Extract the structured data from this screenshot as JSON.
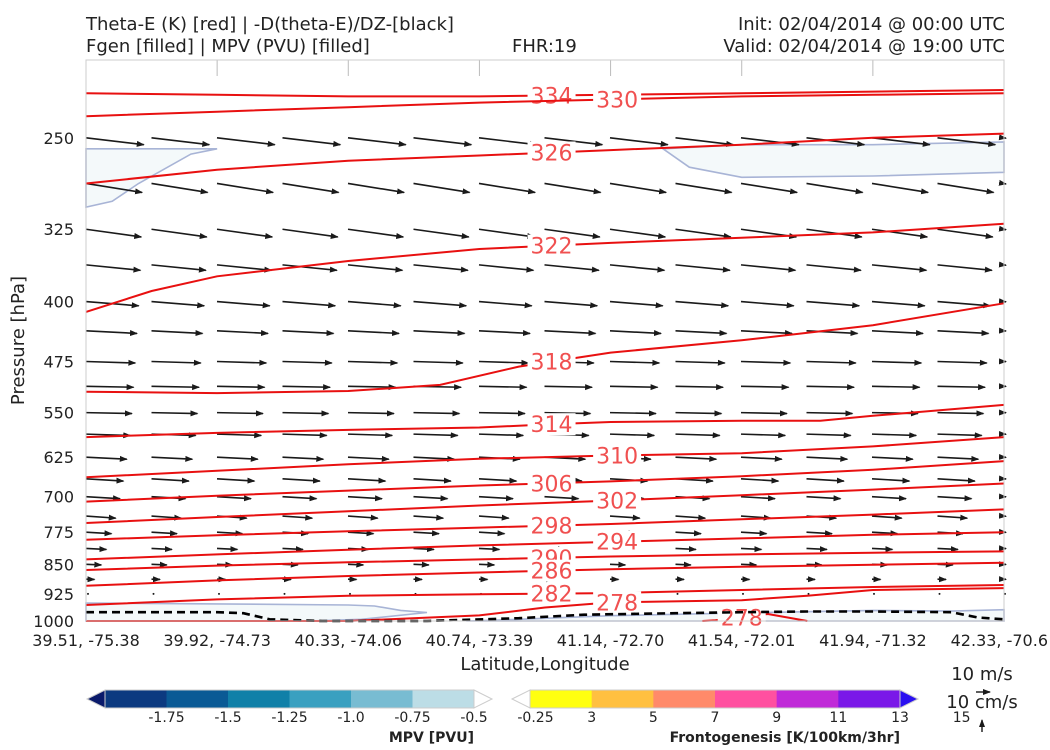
{
  "header": {
    "title_line1": "Theta-E (K) [red] | -D(theta-E)/DZ-[black]",
    "title_line2": "Fgen [filled] | MPV (PVU) [filled]",
    "fhr": "FHR:19",
    "init": "Init: 02/04/2014 @ 00:00 UTC",
    "valid": "Valid: 02/04/2014 @ 19:00 UTC"
  },
  "colors": {
    "theta_e": "#e81010",
    "mpv_fill": "#f4f9fa",
    "mpv_edge": "#a8b4d6",
    "zero_contour": "#000000",
    "vector": "#1a1a1a"
  },
  "chart_data": {
    "type": "cross-section",
    "xlabel": "Latitude,Longitude",
    "ylabel": "Pressure [hPa]",
    "x_ticks": [
      "39.51, -75.38",
      "39.92, -74.73",
      "40.33, -74.06",
      "40.74, -73.39",
      "41.14, -72.70",
      "41.54, -72.01",
      "41.94, -71.32",
      "42.33, -70.6"
    ],
    "xlim": [
      0,
      7
    ],
    "ylim": [
      1000,
      200
    ],
    "y_scale": "log",
    "y_ticks": [
      250,
      325,
      400,
      475,
      550,
      625,
      700,
      775,
      850,
      925,
      1000
    ],
    "theta_e_contours": [
      {
        "level": 334,
        "label": "334",
        "label_x": 3.55,
        "points": [
          [
            0,
            220
          ],
          [
            1,
            221
          ],
          [
            2,
            222
          ],
          [
            3,
            222
          ],
          [
            4,
            221
          ],
          [
            5,
            220
          ],
          [
            6,
            219
          ],
          [
            7,
            218
          ]
        ]
      },
      {
        "level": 330,
        "label": "330",
        "label_x": 4.05,
        "points": [
          [
            0,
            235
          ],
          [
            1,
            232
          ],
          [
            2,
            229
          ],
          [
            3,
            226
          ],
          [
            4,
            224
          ],
          [
            5,
            222
          ],
          [
            6,
            221
          ],
          [
            7,
            220
          ]
        ]
      },
      {
        "level": 326,
        "label": "326",
        "label_x": 3.55,
        "points": [
          [
            0,
            285
          ],
          [
            1,
            274
          ],
          [
            2,
            267
          ],
          [
            3,
            263
          ],
          [
            4,
            259
          ],
          [
            5,
            255
          ],
          [
            6,
            250
          ],
          [
            7,
            247
          ]
        ]
      },
      {
        "level": 322,
        "label": "322",
        "label_x": 3.55,
        "points": [
          [
            0,
            412
          ],
          [
            0.5,
            388
          ],
          [
            1,
            372
          ],
          [
            2,
            356
          ],
          [
            3,
            344
          ],
          [
            4,
            338
          ],
          [
            5,
            333
          ],
          [
            6,
            328
          ],
          [
            7,
            320
          ]
        ]
      },
      {
        "level": 318,
        "label": "318",
        "label_x": 3.55,
        "points": [
          [
            0,
            518
          ],
          [
            1,
            520
          ],
          [
            2,
            517
          ],
          [
            2.7,
            508
          ],
          [
            3.3,
            482
          ],
          [
            4,
            463
          ],
          [
            5,
            447
          ],
          [
            6,
            428
          ],
          [
            7,
            402
          ]
        ]
      },
      {
        "level": 314,
        "label": "314",
        "label_x": 3.55,
        "points": [
          [
            0,
            590
          ],
          [
            1,
            583
          ],
          [
            2,
            578
          ],
          [
            3,
            574
          ],
          [
            3.5,
            569
          ],
          [
            4,
            565
          ],
          [
            5,
            563
          ],
          [
            5.6,
            563
          ],
          [
            6,
            555
          ],
          [
            7,
            538
          ]
        ]
      },
      {
        "level": 310,
        "label": "310",
        "label_x": 4.05,
        "points": [
          [
            0,
            662
          ],
          [
            1,
            650
          ],
          [
            2,
            638
          ],
          [
            3,
            628
          ],
          [
            4,
            622
          ],
          [
            5,
            618
          ],
          [
            6,
            606
          ],
          [
            7,
            590
          ]
        ]
      },
      {
        "level": 306,
        "label": "306",
        "label_x": 3.55,
        "points": [
          [
            0,
            710
          ],
          [
            1,
            698
          ],
          [
            2,
            688
          ],
          [
            3,
            678
          ],
          [
            4,
            670
          ],
          [
            5,
            660
          ],
          [
            6,
            648
          ],
          [
            7,
            632
          ]
        ]
      },
      {
        "level": 302,
        "label": "302",
        "label_x": 4.05,
        "points": [
          [
            0,
            755
          ],
          [
            1,
            742
          ],
          [
            2,
            730
          ],
          [
            3,
            718
          ],
          [
            4,
            708
          ],
          [
            5,
            697
          ],
          [
            6,
            686
          ],
          [
            7,
            674
          ]
        ]
      },
      {
        "level": 298,
        "label": "298",
        "label_x": 3.55,
        "points": [
          [
            0,
            792
          ],
          [
            1,
            782
          ],
          [
            2,
            773
          ],
          [
            3,
            765
          ],
          [
            4,
            757
          ],
          [
            5,
            747
          ],
          [
            6,
            737
          ],
          [
            7,
            726
          ]
        ]
      },
      {
        "level": 294,
        "label": "294",
        "label_x": 4.05,
        "points": [
          [
            0,
            838
          ],
          [
            1,
            826
          ],
          [
            2,
            815
          ],
          [
            3,
            805
          ],
          [
            4,
            797
          ],
          [
            5,
            789
          ],
          [
            6,
            781
          ],
          [
            7,
            775
          ]
        ]
      },
      {
        "level": 290,
        "label": "290",
        "label_x": 3.55,
        "points": [
          [
            0,
            864
          ],
          [
            1,
            853
          ],
          [
            2,
            845
          ],
          [
            3,
            838
          ],
          [
            4,
            831
          ],
          [
            5,
            826
          ],
          [
            6,
            822
          ],
          [
            7,
            819
          ]
        ]
      },
      {
        "level": 286,
        "label": "286",
        "label_x": 3.55,
        "points": [
          [
            0,
            904
          ],
          [
            1,
            890
          ],
          [
            2,
            879
          ],
          [
            3,
            870
          ],
          [
            4,
            862
          ],
          [
            5,
            856
          ],
          [
            6,
            851
          ],
          [
            7,
            846
          ]
        ]
      },
      {
        "level": 282,
        "label": "282",
        "label_x": 3.55,
        "points": [
          [
            0,
            955
          ],
          [
            1,
            940
          ],
          [
            2,
            930
          ],
          [
            3,
            926
          ],
          [
            4,
            923
          ],
          [
            5,
            915
          ],
          [
            6,
            907
          ],
          [
            7,
            902
          ]
        ]
      },
      {
        "level": 278,
        "label": "278",
        "label_x": 4.05,
        "points": [
          [
            0,
            1000
          ],
          [
            1,
            1000
          ],
          [
            2,
            1000
          ],
          [
            3,
            984
          ],
          [
            3.5,
            962
          ],
          [
            4,
            948
          ],
          [
            5,
            942
          ],
          [
            5.5,
            930
          ],
          [
            6,
            915
          ],
          [
            7,
            910
          ]
        ]
      },
      {
        "level": 278,
        "label": "278",
        "label_x": 5.0,
        "points": [
          [
            4.7,
            1000
          ],
          [
            4.8,
            998
          ],
          [
            5.0,
            990
          ],
          [
            5.2,
            980
          ],
          [
            5.35,
            990
          ],
          [
            5.5,
            1000
          ]
        ]
      }
    ],
    "zero_contour": [
      [
        0,
        975
      ],
      [
        1,
        975
      ],
      [
        1.2,
        978
      ],
      [
        1.4,
        995
      ],
      [
        1.8,
        1000
      ],
      [
        2.2,
        1000
      ],
      [
        2.6,
        1000
      ],
      [
        3.3,
        992
      ],
      [
        3.8,
        982
      ],
      [
        4.5,
        978
      ],
      [
        5,
        975
      ],
      [
        5.5,
        973
      ],
      [
        6,
        973
      ],
      [
        6.6,
        975
      ],
      [
        6.8,
        990
      ],
      [
        7,
        995
      ]
    ],
    "mpv_regions": [
      [
        [
          0,
          258
        ],
        [
          1,
          258
        ],
        [
          0.8,
          262
        ],
        [
          0.4,
          285
        ],
        [
          0.2,
          300
        ],
        [
          0,
          305
        ]
      ],
      [
        [
          4.4,
          258
        ],
        [
          5,
          255
        ],
        [
          6,
          255
        ],
        [
          7,
          253
        ],
        [
          7,
          276
        ],
        [
          6,
          279
        ],
        [
          5,
          280
        ],
        [
          4.6,
          272
        ]
      ],
      [
        [
          0,
          950
        ],
        [
          1,
          952
        ],
        [
          2,
          955
        ],
        [
          2.2,
          958
        ],
        [
          2.4,
          970
        ],
        [
          2.6,
          976
        ],
        [
          2.1,
          995
        ],
        [
          1.7,
          1000
        ],
        [
          0,
          1000
        ]
      ],
      [
        [
          2.9,
          1000
        ],
        [
          3.3,
          995
        ],
        [
          4,
          985
        ],
        [
          5,
          977
        ],
        [
          6,
          970
        ],
        [
          6.6,
          972
        ],
        [
          7,
          968
        ],
        [
          7,
          1000
        ]
      ]
    ],
    "vectors": {
      "levels": [
        250,
        285,
        325,
        360,
        400,
        435,
        475,
        510,
        550,
        585,
        625,
        665,
        700,
        740,
        775,
        812,
        850,
        887,
        925
      ],
      "u": [
        6.8,
        6.6,
        6.5,
        6.4,
        6.2,
        6.0,
        5.8,
        5.6,
        5.4,
        5.2,
        4.8,
        4.4,
        4.0,
        3.5,
        3.0,
        2.4,
        1.8,
        1.0,
        0.3
      ],
      "v_slope": [
        0.12,
        0.16,
        0.14,
        0.1,
        0.08,
        0.05,
        0.03,
        0.02,
        0.02,
        0.03,
        0.05,
        0.06,
        0.06,
        0.07,
        0.06,
        0.05,
        0.04,
        0.03,
        0.0
      ]
    },
    "mpv_colorbar": {
      "title": "MPV [PVU]",
      "ticks": [
        "-1.75",
        "-1.5",
        "-1.25",
        "-1.0",
        "-0.75",
        "-0.5",
        "-0.25"
      ],
      "colors": [
        "#0a1a6b",
        "#0c3a80",
        "#0a5a95",
        "#1080a8",
        "#3aa0c0",
        "#78bcd2",
        "#bcdde6",
        "#ffffff"
      ]
    },
    "fgen_colorbar": {
      "title": "Frontogenesis [K/100km/3hr]",
      "ticks": [
        "3",
        "5",
        "7",
        "9",
        "11",
        "13",
        "15"
      ],
      "colors": [
        "#ffffff",
        "#ffff10",
        "#ffc040",
        "#ff8a6a",
        "#ff50a0",
        "#c02ad8",
        "#7a18e8",
        "#2a10f0"
      ]
    },
    "vector_scale": {
      "label_1": "10 m/s",
      "label_2": "10 cm/s"
    }
  }
}
